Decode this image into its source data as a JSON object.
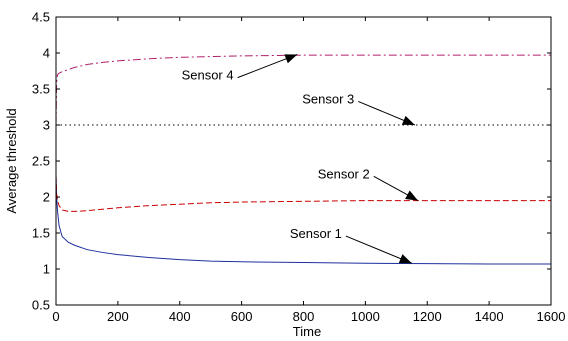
{
  "chart_data": {
    "type": "line",
    "title": "",
    "xlabel": "Time",
    "ylabel": "Average threshold",
    "xlim": [
      0,
      1600
    ],
    "ylim": [
      0.5,
      4.5
    ],
    "xticks": [
      0,
      200,
      400,
      600,
      800,
      1000,
      1200,
      1400,
      1600
    ],
    "yticks": [
      0.5,
      1,
      1.5,
      2,
      2.5,
      3,
      3.5,
      4,
      4.5
    ],
    "xtick_labels": [
      "0",
      "200",
      "400",
      "600",
      "800",
      "1000",
      "1200",
      "1400",
      "1600"
    ],
    "ytick_labels": [
      "0.5",
      "1",
      "1.5",
      "2",
      "2.5",
      "3",
      "3.5",
      "4",
      "4.5"
    ],
    "grid": false,
    "series": [
      {
        "name": "Sensor 1",
        "color": "#1f2f9e",
        "dash": "solid",
        "x": [
          0,
          2,
          5,
          10,
          20,
          40,
          60,
          100,
          150,
          200,
          300,
          400,
          500,
          600,
          800,
          1000,
          1200,
          1400,
          1600
        ],
        "y": [
          2.3,
          2.0,
          1.8,
          1.6,
          1.45,
          1.37,
          1.33,
          1.27,
          1.23,
          1.2,
          1.16,
          1.13,
          1.11,
          1.1,
          1.09,
          1.08,
          1.075,
          1.07,
          1.07
        ]
      },
      {
        "name": "Sensor 2",
        "color": "#cc0000",
        "dash": "dashed",
        "x": [
          0,
          2,
          5,
          10,
          20,
          40,
          60,
          100,
          150,
          200,
          300,
          400,
          500,
          600,
          800,
          1000,
          1200,
          1400,
          1600
        ],
        "y": [
          2.3,
          2.05,
          1.95,
          1.88,
          1.82,
          1.8,
          1.8,
          1.81,
          1.83,
          1.85,
          1.88,
          1.9,
          1.92,
          1.93,
          1.94,
          1.95,
          1.95,
          1.95,
          1.95
        ]
      },
      {
        "name": "Sensor 3",
        "color": "#000000",
        "dash": "dotted",
        "x": [
          0,
          1600
        ],
        "y": [
          3.0,
          3.0
        ]
      },
      {
        "name": "Sensor 4",
        "color": "#b0206a",
        "dash": "dashdot",
        "x": [
          0,
          2,
          5,
          10,
          20,
          40,
          60,
          100,
          150,
          200,
          300,
          400,
          500,
          600,
          800,
          1000,
          1200,
          1400,
          1600
        ],
        "y": [
          3.0,
          3.6,
          3.7,
          3.72,
          3.74,
          3.77,
          3.8,
          3.84,
          3.87,
          3.89,
          3.92,
          3.94,
          3.95,
          3.96,
          3.97,
          3.97,
          3.97,
          3.97,
          3.97
        ]
      }
    ],
    "annotations": [
      {
        "text": "Sensor 4",
        "x": 490,
        "y": 3.63,
        "target_x": 780,
        "target_y": 3.98
      },
      {
        "text": "Sensor 3",
        "x": 880,
        "y": 3.3,
        "target_x": 1160,
        "target_y": 3.0
      },
      {
        "text": "Sensor 2",
        "x": 930,
        "y": 2.26,
        "target_x": 1170,
        "target_y": 1.95
      },
      {
        "text": "Sensor 1",
        "x": 840,
        "y": 1.43,
        "target_x": 1150,
        "target_y": 1.08
      }
    ]
  }
}
